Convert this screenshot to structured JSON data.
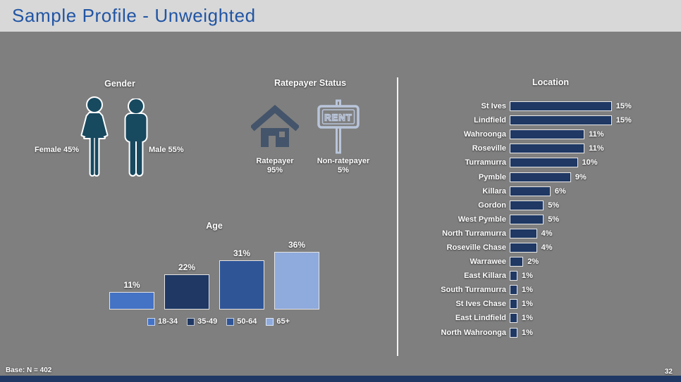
{
  "header": {
    "title": "Sample Profile - Unweighted"
  },
  "gender": {
    "title": "Gender",
    "female_label": "Female 45%",
    "male_label": "Male 55%"
  },
  "ratepayer": {
    "title": "Ratepayer Status",
    "rent_sign_text": "RENT",
    "items": [
      {
        "label": "Ratepayer",
        "value": "95%"
      },
      {
        "label": "Non-ratepayer",
        "value": "5%"
      }
    ]
  },
  "chart_data": [
    {
      "type": "bar",
      "title": "Age",
      "categories": [
        "18-34",
        "35-49",
        "50-64",
        "65+"
      ],
      "values": [
        11,
        22,
        31,
        36
      ],
      "labels": [
        "11%",
        "22%",
        "31%",
        "36%"
      ],
      "colors": [
        "#4472C4",
        "#1F3864",
        "#2F5597",
        "#8FAADC"
      ],
      "ylim": [
        0,
        40
      ],
      "legend_position": "bottom",
      "grid": false
    },
    {
      "type": "bar",
      "orientation": "horizontal",
      "title": "Location",
      "categories": [
        "St Ives",
        "Lindfield",
        "Wahroonga",
        "Roseville",
        "Turramurra",
        "Pymble",
        "Killara",
        "Gordon",
        "West Pymble",
        "North Turramurra",
        "Roseville Chase",
        "Warrawee",
        "East Killara",
        "South Turramurra",
        "St Ives Chase",
        "East Lindfield",
        "North Wahroonga"
      ],
      "values": [
        15,
        15,
        11,
        11,
        10,
        9,
        6,
        5,
        5,
        4,
        4,
        2,
        1,
        1,
        1,
        1,
        1
      ],
      "labels": [
        "15%",
        "15%",
        "11%",
        "11%",
        "10%",
        "9%",
        "6%",
        "5%",
        "5%",
        "4%",
        "4%",
        "2%",
        "1%",
        "1%",
        "1%",
        "1%",
        "1%"
      ],
      "bar_color": "#1F3864",
      "xlim": [
        0,
        16
      ],
      "grid": false
    }
  ],
  "footer": {
    "base_label": "Base: N = 402",
    "page_number": "32"
  },
  "colors": {
    "title_blue": "#2155A4",
    "person_icon": "#17495F",
    "house_icon": "#44546A",
    "rent_icon": "#B9C5DA",
    "navy": "#1F3864",
    "header_bg": "#D8D8D8",
    "slide_bg": "#7F7F7F"
  }
}
